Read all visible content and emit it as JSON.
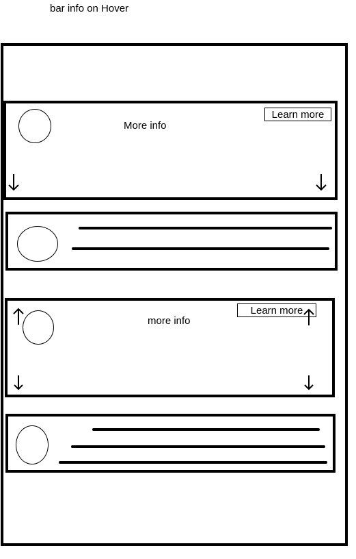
{
  "page": {
    "title": "bar info on Hover"
  },
  "cards": [
    {
      "state": "expanded",
      "info_text": "More info",
      "button_label": "Learn more",
      "icons": [
        "down-arrow",
        "down-arrow"
      ]
    },
    {
      "state": "collapsed",
      "bar_count": 2
    },
    {
      "state": "expanded",
      "info_text": "more info",
      "button_label": "Learn more",
      "icons": [
        "up-arrow",
        "up-arrow",
        "down-arrow",
        "down-arrow"
      ]
    },
    {
      "state": "collapsed",
      "bar_count": 3
    }
  ]
}
